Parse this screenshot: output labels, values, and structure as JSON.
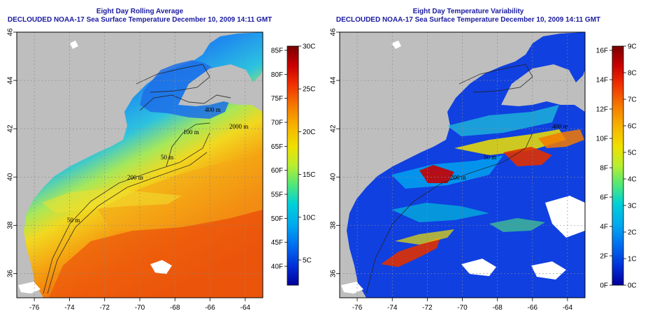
{
  "panels": {
    "left": {
      "title_line1": "Eight Day Rolling Average",
      "title_line2": "DECLOUDED NOAA-17 Sea Surface Temperature December 10, 2009 14:11 GMT",
      "colorbar": {
        "fahrenheit_labels": [
          "85F",
          "80F",
          "75F",
          "70F",
          "65F",
          "60F",
          "55F",
          "50F",
          "45F",
          "40F"
        ],
        "celsius_labels": [
          "30C",
          "25C",
          "20C",
          "15C",
          "10C",
          "5C"
        ],
        "colors": [
          "#7a0000",
          "#c80000",
          "#f03000",
          "#f57a00",
          "#f7b000",
          "#f0e000",
          "#b8ee30",
          "#50e878",
          "#00d0d8",
          "#00a8f0",
          "#0070f0",
          "#0030d8",
          "#00009a"
        ]
      },
      "contour_labels": [
        "400 m",
        "2000 m",
        "100 m",
        "50 m",
        "200 m",
        "50 m"
      ]
    },
    "right": {
      "title_line1": "Eight Day Temperature Variability",
      "title_line2": "DECLOUDED NOAA-17 Sea Surface Temperature December 10, 2009 14:11 GMT",
      "colorbar": {
        "fahrenheit_labels": [
          "16F",
          "14F",
          "12F",
          "10F",
          "8F",
          "6F",
          "4F",
          "2F",
          "0F"
        ],
        "celsius_labels": [
          "9C",
          "8C",
          "7C",
          "6C",
          "5C",
          "4C",
          "3C",
          "2C",
          "1C",
          "0C"
        ],
        "colors": [
          "#7a0000",
          "#c80000",
          "#f03000",
          "#f57a00",
          "#f7b000",
          "#f0e000",
          "#b8ee30",
          "#50e878",
          "#00d0d8",
          "#00a8f0",
          "#0070f0",
          "#0030d8",
          "#00009a"
        ]
      },
      "contour_labels": [
        "400 m",
        "200 m",
        "50 m"
      ]
    },
    "axes": {
      "lon_labels": [
        "-76",
        "-74",
        "-72",
        "-70",
        "-68",
        "-66",
        "-64"
      ],
      "lat_labels": [
        "46",
        "44",
        "42",
        "40",
        "38",
        "36"
      ]
    }
  }
}
